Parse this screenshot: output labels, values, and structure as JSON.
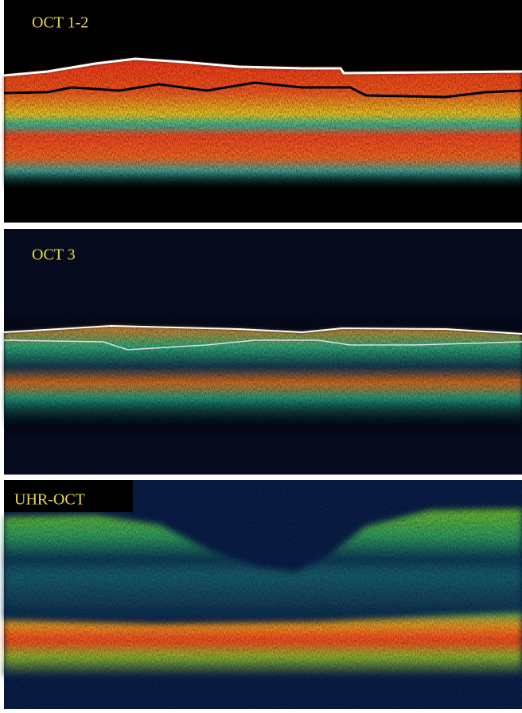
{
  "panels": [
    {
      "label": "OCT 1-2"
    },
    {
      "label": "OCT 3"
    },
    {
      "label": "UHR-OCT"
    }
  ]
}
